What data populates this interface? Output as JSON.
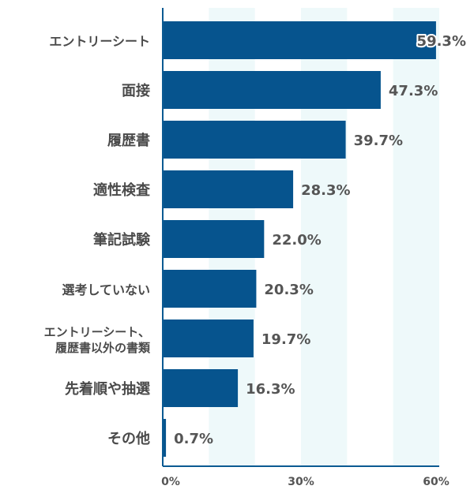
{
  "chart_data": {
    "type": "bar",
    "orientation": "horizontal",
    "categories": [
      "エントリーシート",
      "面接",
      "履歴書",
      "適性検査",
      "筆記試験",
      "選考していない",
      "エントリーシート、\n履歴書以外の書類",
      "先着順や抽選",
      "その他"
    ],
    "values": [
      59.3,
      47.3,
      39.7,
      28.3,
      22.0,
      20.3,
      19.7,
      16.3,
      0.7
    ],
    "value_labels": [
      "59.3%",
      "47.3%",
      "39.7%",
      "28.3%",
      "22.0%",
      "20.3%",
      "19.7%",
      "16.3%",
      "0.7%"
    ],
    "xlim": [
      0,
      60
    ],
    "x_ticks": [
      0,
      30,
      60
    ],
    "x_tick_labels": [
      "0%",
      "30%",
      "60%"
    ],
    "shaded_bands": [
      [
        10,
        20
      ],
      [
        30,
        40
      ],
      [
        50,
        60
      ]
    ],
    "grid": false,
    "colors": {
      "bar": "#06548e",
      "axis": "#0b5a92",
      "band": "#eef9fa",
      "text": "#4a4a4a"
    }
  }
}
